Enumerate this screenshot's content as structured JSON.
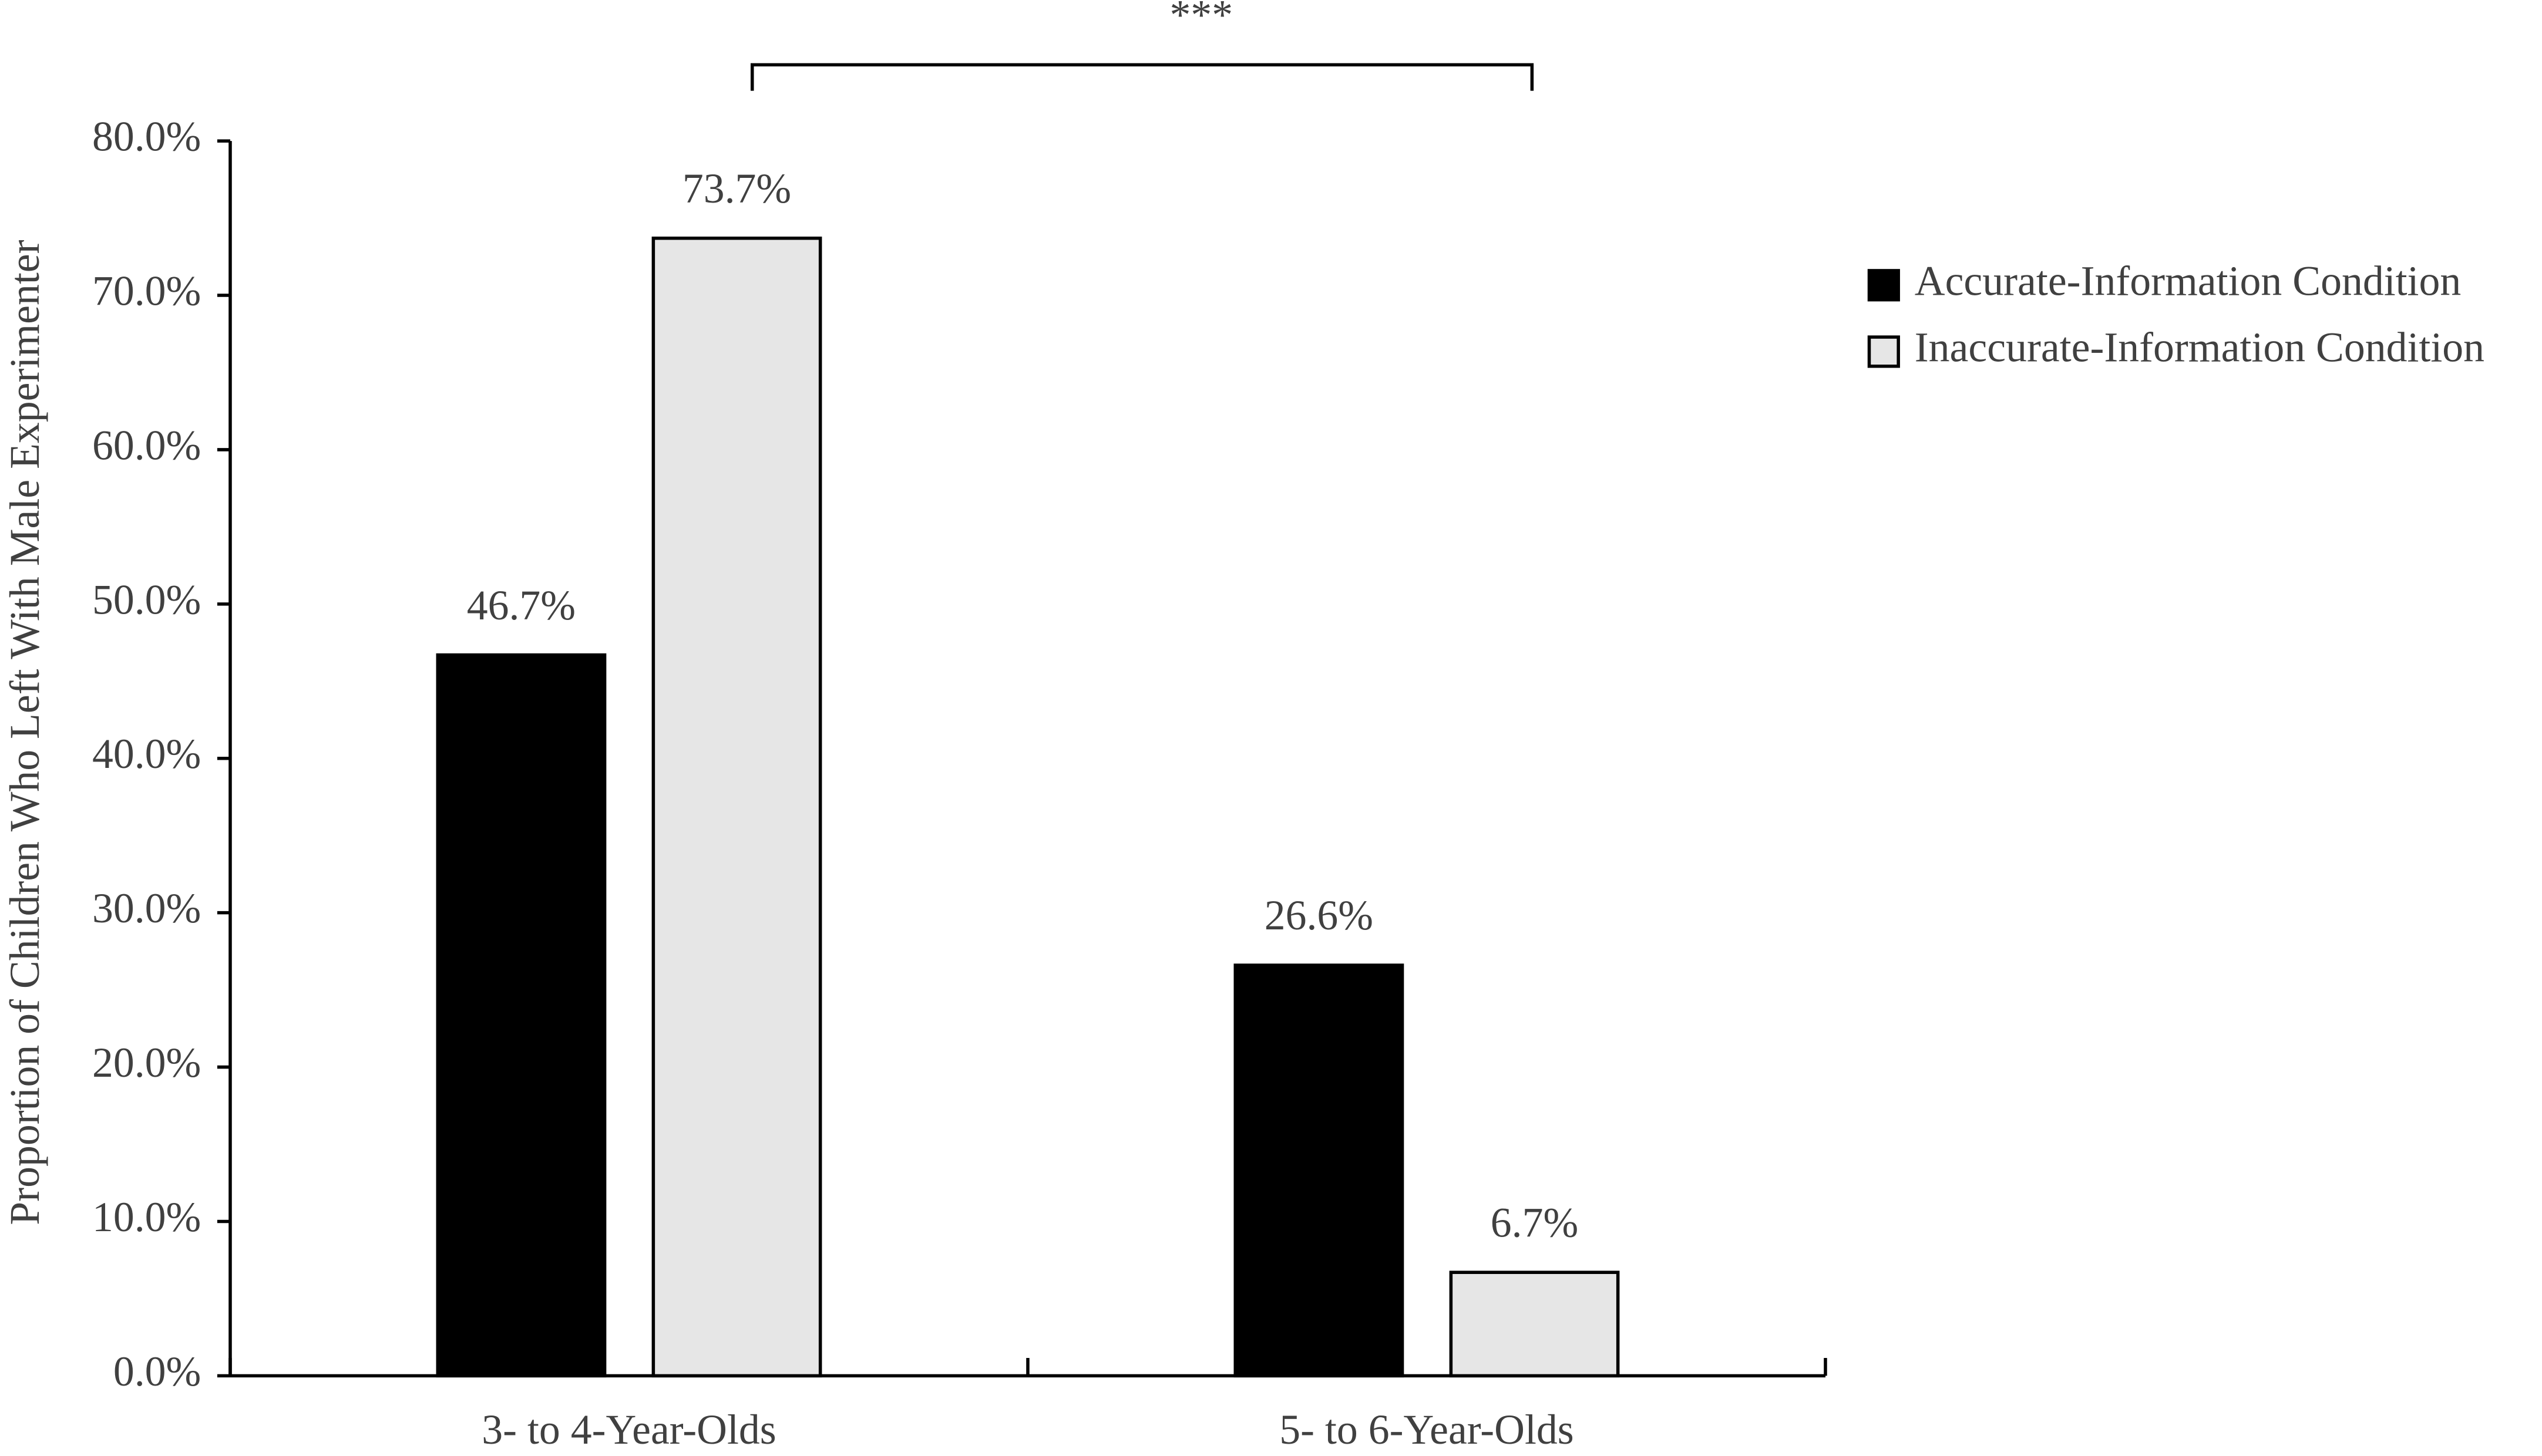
{
  "chart_data": {
    "type": "bar",
    "annotation": "***",
    "y_label": "Proportion of Children Who Left With Male Experimenter",
    "categories": [
      "3- to 4-Year-Olds",
      "5- to 6-Year-Olds"
    ],
    "series": [
      {
        "name": "Accurate-Information Condition",
        "color": "#000000",
        "values": [
          46.7,
          26.6
        ],
        "value_labels": [
          "46.7%",
          "26.6%"
        ]
      },
      {
        "name": "Inaccurate-Information Condition",
        "color": "#e6e6e6",
        "values": [
          73.7,
          6.7
        ],
        "value_labels": [
          "73.7%",
          "6.7%"
        ]
      }
    ],
    "ylim": [
      0,
      80
    ],
    "yticks": [
      {
        "value": 0,
        "label": "0.0%"
      },
      {
        "value": 10,
        "label": "10.0%"
      },
      {
        "value": 20,
        "label": "20.0%"
      },
      {
        "value": 30,
        "label": "30.0%"
      },
      {
        "value": 40,
        "label": "40.0%"
      },
      {
        "value": 50,
        "label": "50.0%"
      },
      {
        "value": 60,
        "label": "60.0%"
      },
      {
        "value": 70,
        "label": "70.0%"
      },
      {
        "value": 80,
        "label": "80.0%"
      }
    ],
    "legend": "right"
  }
}
